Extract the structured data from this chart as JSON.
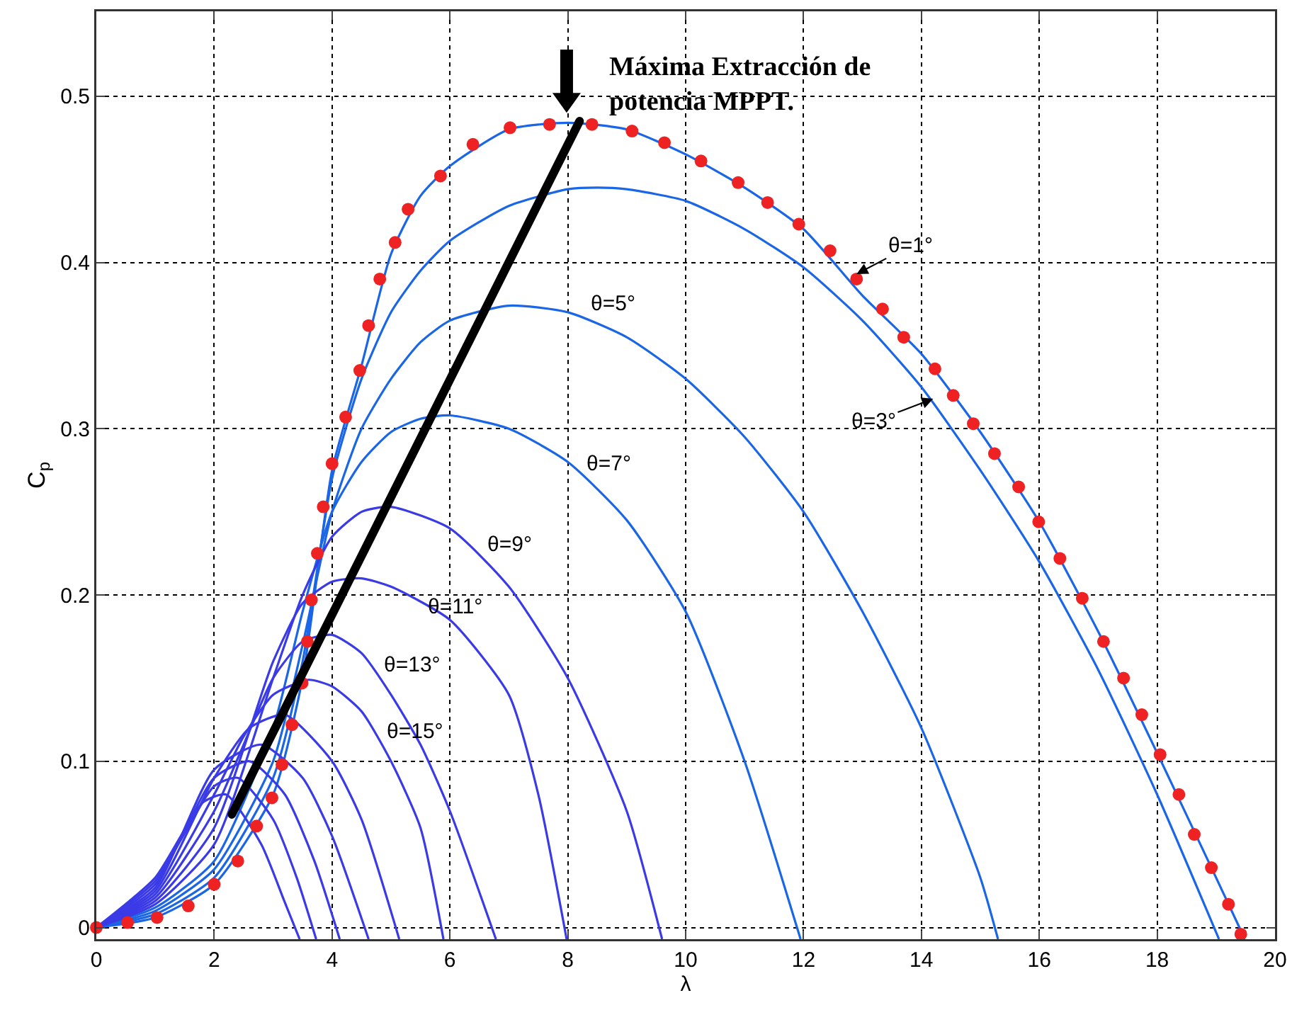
{
  "chart_data": {
    "type": "line",
    "xlabel": "λ",
    "ylabel": "C$_{p}$",
    "xlim": [
      0,
      20
    ],
    "ylim": [
      -0.007,
      0.551
    ],
    "xticks": [
      0,
      2,
      4,
      6,
      8,
      10,
      12,
      14,
      16,
      18,
      20
    ],
    "yticks": [
      0,
      0.1,
      0.2,
      0.3,
      0.4,
      0.5
    ],
    "grid": true,
    "legend": false,
    "marker": "none",
    "line_style": "solid",
    "series": [
      {
        "name": "θ=1°",
        "color": "#1a66e6",
        "x": [
          0,
          1,
          2,
          3,
          3.5,
          4,
          4.5,
          5,
          5.5,
          6,
          7,
          8,
          9,
          10,
          11,
          12,
          13,
          14,
          15,
          16,
          17,
          18,
          19,
          19.45
        ],
        "values": [
          0,
          0.006,
          0.026,
          0.08,
          0.15,
          0.275,
          0.338,
          0.405,
          0.44,
          0.458,
          0.48,
          0.484,
          0.48,
          0.465,
          0.445,
          0.42,
          0.38,
          0.345,
          0.298,
          0.244,
          0.178,
          0.105,
          0.03,
          -0.004
        ]
      },
      {
        "name": "θ=3°",
        "color": "#1a66e6",
        "x": [
          0,
          1,
          2,
          3,
          3.5,
          4,
          4.5,
          5,
          5.5,
          6,
          7,
          8,
          8.5,
          9,
          10,
          11,
          12,
          13,
          14,
          15,
          16,
          17,
          18,
          19.05
        ],
        "values": [
          0,
          0.008,
          0.03,
          0.09,
          0.16,
          0.27,
          0.33,
          0.37,
          0.395,
          0.413,
          0.434,
          0.444,
          0.445,
          0.444,
          0.437,
          0.42,
          0.397,
          0.365,
          0.325,
          0.275,
          0.22,
          0.155,
          0.08,
          -0.007
        ]
      },
      {
        "name": "θ=5°",
        "color": "#1a66e6",
        "x": [
          0,
          1,
          2,
          3,
          3.5,
          4,
          4.5,
          5,
          5.5,
          6,
          7,
          8,
          9,
          10,
          11,
          12,
          13,
          14,
          15,
          15.3
        ],
        "values": [
          0,
          0.01,
          0.035,
          0.1,
          0.17,
          0.25,
          0.3,
          0.33,
          0.352,
          0.365,
          0.374,
          0.37,
          0.355,
          0.33,
          0.295,
          0.25,
          0.19,
          0.12,
          0.03,
          -0.007
        ]
      },
      {
        "name": "θ=7°",
        "color": "#1a66e6",
        "x": [
          0,
          1,
          2,
          3,
          3.5,
          4,
          4.5,
          5,
          5.5,
          6,
          7,
          8,
          9,
          10,
          11,
          11.95
        ],
        "values": [
          0,
          0.012,
          0.04,
          0.12,
          0.19,
          0.25,
          0.28,
          0.298,
          0.306,
          0.308,
          0.3,
          0.28,
          0.245,
          0.19,
          0.1,
          -0.007
        ]
      },
      {
        "name": "θ=9°",
        "color": "#3a3ae6",
        "x": [
          0,
          1,
          2,
          3,
          3.5,
          4,
          4.5,
          5,
          6,
          7,
          8,
          9,
          9.6
        ],
        "values": [
          0,
          0.014,
          0.05,
          0.15,
          0.2,
          0.235,
          0.25,
          0.253,
          0.24,
          0.205,
          0.15,
          0.07,
          -0.007
        ]
      },
      {
        "name": "θ=11°",
        "color": "#3a3ae6",
        "x": [
          0,
          1,
          2,
          3,
          3.5,
          4,
          4.5,
          5,
          6,
          7,
          7.5,
          7.98
        ],
        "values": [
          0,
          0.016,
          0.06,
          0.16,
          0.195,
          0.208,
          0.21,
          0.205,
          0.185,
          0.14,
          0.08,
          -0.007
        ]
      },
      {
        "name": "θ=13°",
        "color": "#3a3ae6",
        "x": [
          0,
          1,
          2,
          2.5,
          3,
          3.5,
          4,
          4.5,
          5,
          5.5,
          6,
          6.78
        ],
        "values": [
          0,
          0.018,
          0.07,
          0.11,
          0.15,
          0.172,
          0.176,
          0.165,
          0.14,
          0.11,
          0.07,
          -0.007
        ]
      },
      {
        "name": "θ=15°",
        "color": "#3a3ae6",
        "x": [
          0,
          1,
          2,
          2.5,
          3,
          3.6,
          4,
          4.5,
          5,
          5.5,
          5.89
        ],
        "values": [
          0,
          0.02,
          0.08,
          0.115,
          0.14,
          0.149,
          0.145,
          0.13,
          0.1,
          0.06,
          -0.007
        ]
      },
      {
        "color": "#3a3ae6",
        "x": [
          0,
          1,
          2,
          2.6,
          3.2,
          4,
          4.5,
          5.14
        ],
        "values": [
          0,
          0.022,
          0.09,
          0.12,
          0.128,
          0.1,
          0.065,
          -0.007
        ]
      },
      {
        "color": "#3a3ae6",
        "x": [
          0,
          1,
          2,
          2.8,
          3.5,
          4,
          4.62
        ],
        "values": [
          0,
          0.024,
          0.095,
          0.11,
          0.09,
          0.055,
          -0.007
        ]
      },
      {
        "color": "#3a3ae6",
        "x": [
          0,
          1,
          2,
          2.6,
          3.2,
          3.7,
          4.13
        ],
        "values": [
          0,
          0.026,
          0.09,
          0.1,
          0.08,
          0.04,
          -0.007
        ]
      },
      {
        "color": "#3a3ae6",
        "x": [
          0,
          1,
          2,
          2.4,
          3,
          3.4,
          3.73
        ],
        "values": [
          0,
          0.028,
          0.085,
          0.09,
          0.065,
          0.03,
          -0.007
        ]
      },
      {
        "color": "#3a3ae6",
        "x": [
          0,
          1,
          1.8,
          2.2,
          2.8,
          3.2,
          3.45
        ],
        "values": [
          0,
          0.03,
          0.075,
          0.08,
          0.05,
          0.015,
          -0.007
        ]
      },
      {
        "type": "scatter",
        "marker": "circle",
        "color": "#ee2222",
        "x": [
          0,
          0.53,
          1.03,
          1.56,
          2.0,
          2.4,
          2.72,
          2.98,
          3.15,
          3.32,
          3.49,
          3.58,
          3.65,
          3.75,
          3.85,
          4.0,
          4.23,
          4.47,
          4.62,
          4.81,
          5.07,
          5.29,
          5.84,
          6.39,
          7.02,
          7.69,
          8.41,
          9.09,
          9.64,
          10.26,
          10.89,
          11.39,
          11.92,
          12.45,
          12.9,
          13.34,
          13.7,
          14.23,
          14.54,
          14.88,
          15.24,
          15.65,
          15.99,
          16.35,
          16.73,
          17.09,
          17.43,
          17.74,
          18.05,
          18.37,
          18.63,
          18.92,
          19.21,
          19.42
        ],
        "values": [
          0,
          0.003,
          0.006,
          0.013,
          0.026,
          0.04,
          0.061,
          0.078,
          0.098,
          0.122,
          0.147,
          0.172,
          0.197,
          0.225,
          0.253,
          0.279,
          0.307,
          0.335,
          0.362,
          0.39,
          0.412,
          0.432,
          0.452,
          0.471,
          0.481,
          0.483,
          0.483,
          0.479,
          0.472,
          0.461,
          0.448,
          0.436,
          0.423,
          0.407,
          0.39,
          0.372,
          0.355,
          0.336,
          0.32,
          0.303,
          0.285,
          0.265,
          0.244,
          0.222,
          0.198,
          0.172,
          0.15,
          0.128,
          0.104,
          0.08,
          0.056,
          0.036,
          0.014,
          -0.004
        ]
      }
    ],
    "annotations": [
      "Máxima Extracción de\npotencia MPPT."
    ]
  }
}
